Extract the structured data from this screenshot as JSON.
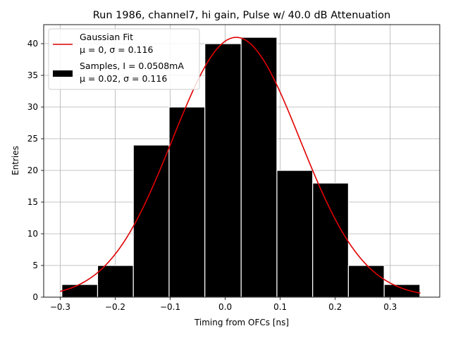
{
  "chart_data": {
    "type": "bar",
    "title": "Run 1986, channel7, hi gain, Pulse w/ 40.0 dB Attenuation",
    "xlabel": "Timing from OFCs [ns]",
    "ylabel": "Entries",
    "xlim": [
      -0.33,
      0.39
    ],
    "ylim": [
      0,
      43
    ],
    "grid": true,
    "legend_position": "top-left",
    "xticks": [
      -0.3,
      -0.2,
      -0.1,
      0.0,
      0.1,
      0.2,
      0.3
    ],
    "xtick_labels": [
      "−0.3",
      "−0.2",
      "−0.1",
      "0.0",
      "0.1",
      "0.2",
      "0.3"
    ],
    "yticks": [
      0,
      5,
      10,
      15,
      20,
      25,
      30,
      35,
      40
    ],
    "yticklabels": [
      "0",
      "5",
      "10",
      "15",
      "20",
      "25",
      "30",
      "35",
      "40"
    ],
    "histogram": {
      "bin_edges": [
        -0.297,
        -0.232,
        -0.167,
        -0.102,
        -0.037,
        0.029,
        0.094,
        0.159,
        0.224,
        0.289,
        0.354
      ],
      "counts": [
        2,
        5,
        24,
        30,
        40,
        41,
        20,
        18,
        5,
        2
      ],
      "color": "#000000",
      "edgecolor": "#ffffff"
    },
    "fit_curve": {
      "mu": 0.02,
      "sigma": 0.116,
      "amplitude": 41,
      "x_range": [
        -0.3,
        0.355
      ],
      "color": "#e00000"
    },
    "legend": [
      {
        "line1": "Gaussian Fit",
        "line2": "μ = 0, σ = 0.116"
      },
      {
        "line1": "Samples, I = 0.0508mA",
        "line2": "μ = 0.02, σ = 0.116"
      }
    ]
  }
}
